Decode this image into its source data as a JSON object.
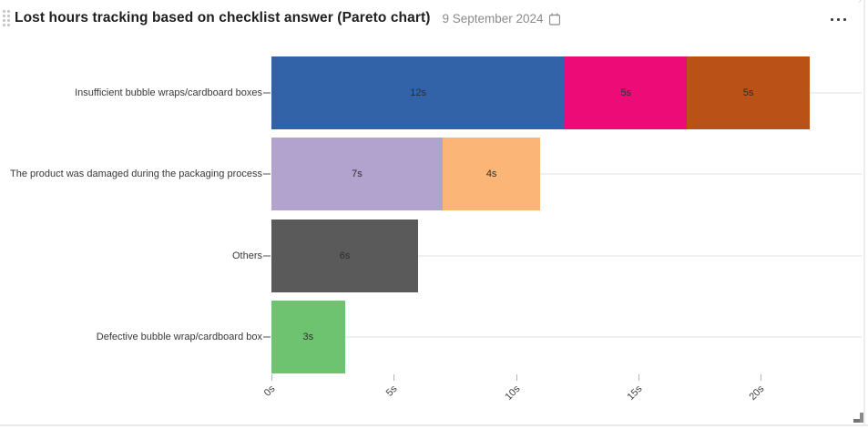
{
  "header": {
    "title": "Lost hours tracking based on checklist answer (Pareto chart)",
    "date": "9 September 2024"
  },
  "chart_data": {
    "type": "bar",
    "orientation": "horizontal",
    "stacked": true,
    "title": "Lost hours tracking based on checklist answer (Pareto chart)",
    "unit": "s",
    "legend": "none",
    "grid": true,
    "categories": [
      "Insufficient bubble wraps/cardboard boxes",
      "The product was damaged during the packaging process",
      "Others",
      "Defective bubble wrap/cardboard box"
    ],
    "rows": [
      {
        "category": "Insufficient bubble wraps/cardboard boxes",
        "total": 22,
        "segments": [
          {
            "value": 12,
            "label": "12s",
            "color": "#3263a8"
          },
          {
            "value": 5,
            "label": "5s",
            "color": "#ed0c77"
          },
          {
            "value": 5,
            "label": "5s",
            "color": "#ba5217"
          }
        ]
      },
      {
        "category": "The product was damaged during the packaging process",
        "total": 11,
        "segments": [
          {
            "value": 7,
            "label": "7s",
            "color": "#b2a2ce"
          },
          {
            "value": 4,
            "label": "4s",
            "color": "#fbb577"
          }
        ]
      },
      {
        "category": "Others",
        "total": 6,
        "segments": [
          {
            "value": 6,
            "label": "6s",
            "color": "#5a5a5a"
          }
        ]
      },
      {
        "category": "Defective bubble wrap/cardboard box",
        "total": 3,
        "segments": [
          {
            "value": 3,
            "label": "3s",
            "color": "#6ec371"
          }
        ]
      }
    ],
    "x_axis": {
      "tick_labels": [
        "0s",
        "5s",
        "10s",
        "15s",
        "20s"
      ],
      "tick_values": [
        0,
        5,
        10,
        15,
        20
      ],
      "min": 0,
      "max": 24.2
    }
  }
}
